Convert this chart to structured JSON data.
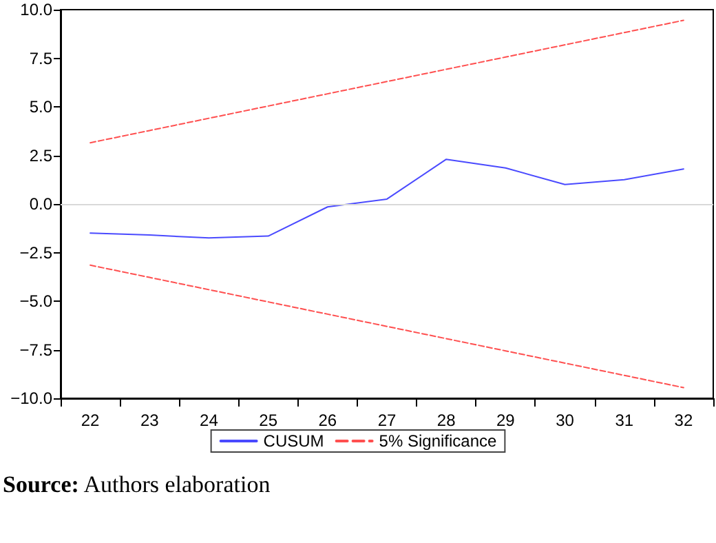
{
  "chart_data": {
    "type": "line",
    "categories": [
      "22",
      "23",
      "24",
      "25",
      "26",
      "27",
      "28",
      "29",
      "30",
      "31",
      "32"
    ],
    "series": [
      {
        "name": "CUSUM",
        "color": "#4a4aff",
        "line_style": "solid",
        "values": [
          -1.5,
          -1.6,
          -1.75,
          -1.65,
          -0.15,
          0.25,
          2.3,
          1.85,
          1.0,
          1.25,
          1.8
        ]
      },
      {
        "name": "5% Significance",
        "color": "#ff4f4f",
        "line_style": "dashed",
        "values": [
          3.15,
          3.78,
          4.41,
          5.04,
          5.67,
          6.3,
          6.93,
          7.56,
          8.19,
          8.82,
          9.45
        ]
      },
      {
        "color": "#ff4f4f",
        "line_style": "dashed",
        "values": [
          -3.15,
          -3.78,
          -4.41,
          -5.04,
          -5.67,
          -6.3,
          -6.93,
          -7.56,
          -8.19,
          -8.82,
          -9.45
        ]
      }
    ],
    "ylim": [
      -10,
      10
    ],
    "yticks": [
      {
        "value": -10,
        "label": "−10.0"
      },
      {
        "value": -7.5,
        "label": "−7.5"
      },
      {
        "value": -5,
        "label": "−5.0"
      },
      {
        "value": -2.5,
        "label": "−2.5"
      },
      {
        "value": 0,
        "label": "0.0"
      },
      {
        "value": 2.5,
        "label": "2.5"
      },
      {
        "value": 5,
        "label": "5.0"
      },
      {
        "value": 7.5,
        "label": "7.5"
      },
      {
        "value": 10,
        "label": "10.0"
      }
    ],
    "ref_lines": [
      {
        "axis": "y",
        "value": 0,
        "color": "#d9d9d9"
      }
    ],
    "grid": false,
    "legend": "bottom",
    "marker": "none",
    "annotations": [
      "Source: Authors elaboration"
    ]
  }
}
